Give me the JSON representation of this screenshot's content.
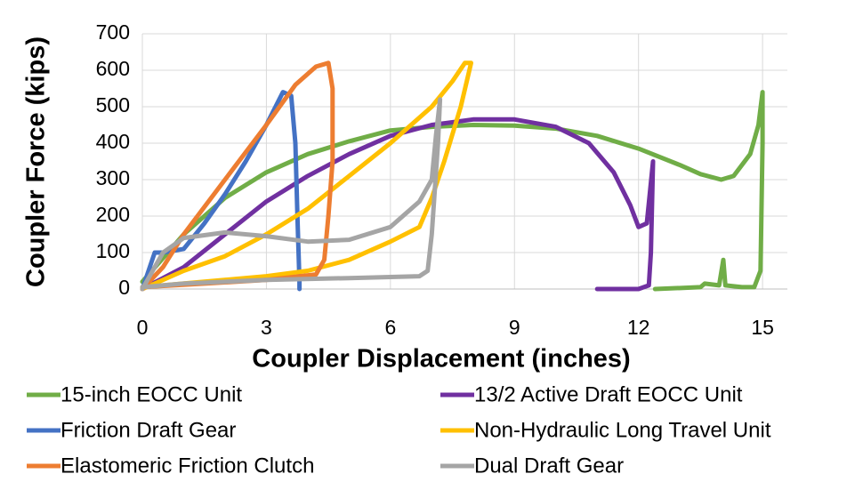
{
  "chart_data": {
    "type": "line",
    "x_label": "Coupler Displacement (inches)",
    "y_label": "Coupler Force (kips)",
    "xlim": [
      0,
      15.6
    ],
    "ylim": [
      0,
      700
    ],
    "xticks": [
      0,
      3,
      6,
      9,
      12,
      15
    ],
    "yticks": [
      0,
      100,
      200,
      300,
      400,
      500,
      600,
      700
    ],
    "grid": true,
    "series": [
      {
        "name": "15-inch EOCC Unit",
        "color": "#70ad47",
        "x": [
          0,
          1,
          2,
          3,
          4,
          5,
          6,
          7,
          8,
          9,
          10,
          11,
          12,
          13,
          13.5,
          14,
          14.3,
          14.7,
          14.9,
          15,
          15,
          14.95,
          14.8,
          14.5,
          14.1,
          14.05,
          13.95,
          13.6,
          13.5,
          12.4
        ],
        "values": [
          20,
          150,
          250,
          320,
          370,
          405,
          435,
          445,
          450,
          448,
          440,
          420,
          385,
          340,
          315,
          300,
          310,
          370,
          450,
          540,
          400,
          50,
          5,
          5,
          10,
          80,
          10,
          15,
          5,
          0
        ]
      },
      {
        "name": "13/2 Active Draft EOCC Unit",
        "color": "#7030a0",
        "x": [
          0,
          1,
          2,
          3,
          4,
          5,
          6,
          7,
          8,
          9,
          10,
          10.8,
          11.4,
          11.8,
          12,
          12.2,
          12.35,
          12.3,
          12.25,
          12,
          11
        ],
        "values": [
          0,
          60,
          150,
          240,
          310,
          370,
          420,
          450,
          465,
          465,
          445,
          400,
          320,
          230,
          170,
          180,
          350,
          100,
          10,
          0,
          0
        ]
      },
      {
        "name": "Friction Draft Gear",
        "color": "#4472c4",
        "x": [
          0,
          0.3,
          0.5,
          1,
          1.5,
          2,
          2.5,
          3,
          3.4,
          3.6,
          3.7,
          3.75,
          3.8,
          3.8
        ],
        "values": [
          0,
          100,
          100,
          110,
          180,
          260,
          350,
          450,
          540,
          530,
          400,
          200,
          20,
          0
        ]
      },
      {
        "name": "Non-Hydraulic Long Travel Unit",
        "color": "#ffc000",
        "x": [
          0,
          1,
          2,
          3,
          4,
          5,
          6,
          7,
          7.5,
          7.8,
          7.95,
          7.7,
          7.3,
          7,
          6.7,
          6,
          5,
          4,
          3,
          1.5,
          0
        ],
        "values": [
          0,
          50,
          90,
          150,
          220,
          310,
          400,
          500,
          570,
          620,
          620,
          500,
          350,
          250,
          170,
          130,
          80,
          50,
          35,
          20,
          5
        ]
      },
      {
        "name": "Elastomeric Friction Clutch",
        "color": "#ed7d31",
        "x": [
          0,
          0.5,
          1,
          2,
          3,
          3.7,
          4.2,
          4.5,
          4.6,
          4.6,
          4.5,
          4.4,
          4.2,
          3,
          1.5,
          0
        ],
        "values": [
          0,
          60,
          150,
          300,
          450,
          560,
          610,
          620,
          550,
          350,
          200,
          80,
          40,
          25,
          15,
          5
        ]
      },
      {
        "name": "Dual Draft Gear",
        "color": "#a5a5a5",
        "x": [
          0,
          0.5,
          1,
          2,
          3,
          4,
          5,
          6,
          6.7,
          7,
          7.1,
          7.2,
          7.15,
          7,
          6.9,
          6.7,
          5,
          3,
          1,
          0
        ],
        "values": [
          0,
          100,
          140,
          155,
          145,
          130,
          135,
          170,
          240,
          300,
          420,
          520,
          400,
          150,
          50,
          35,
          30,
          25,
          15,
          5
        ]
      }
    ]
  }
}
